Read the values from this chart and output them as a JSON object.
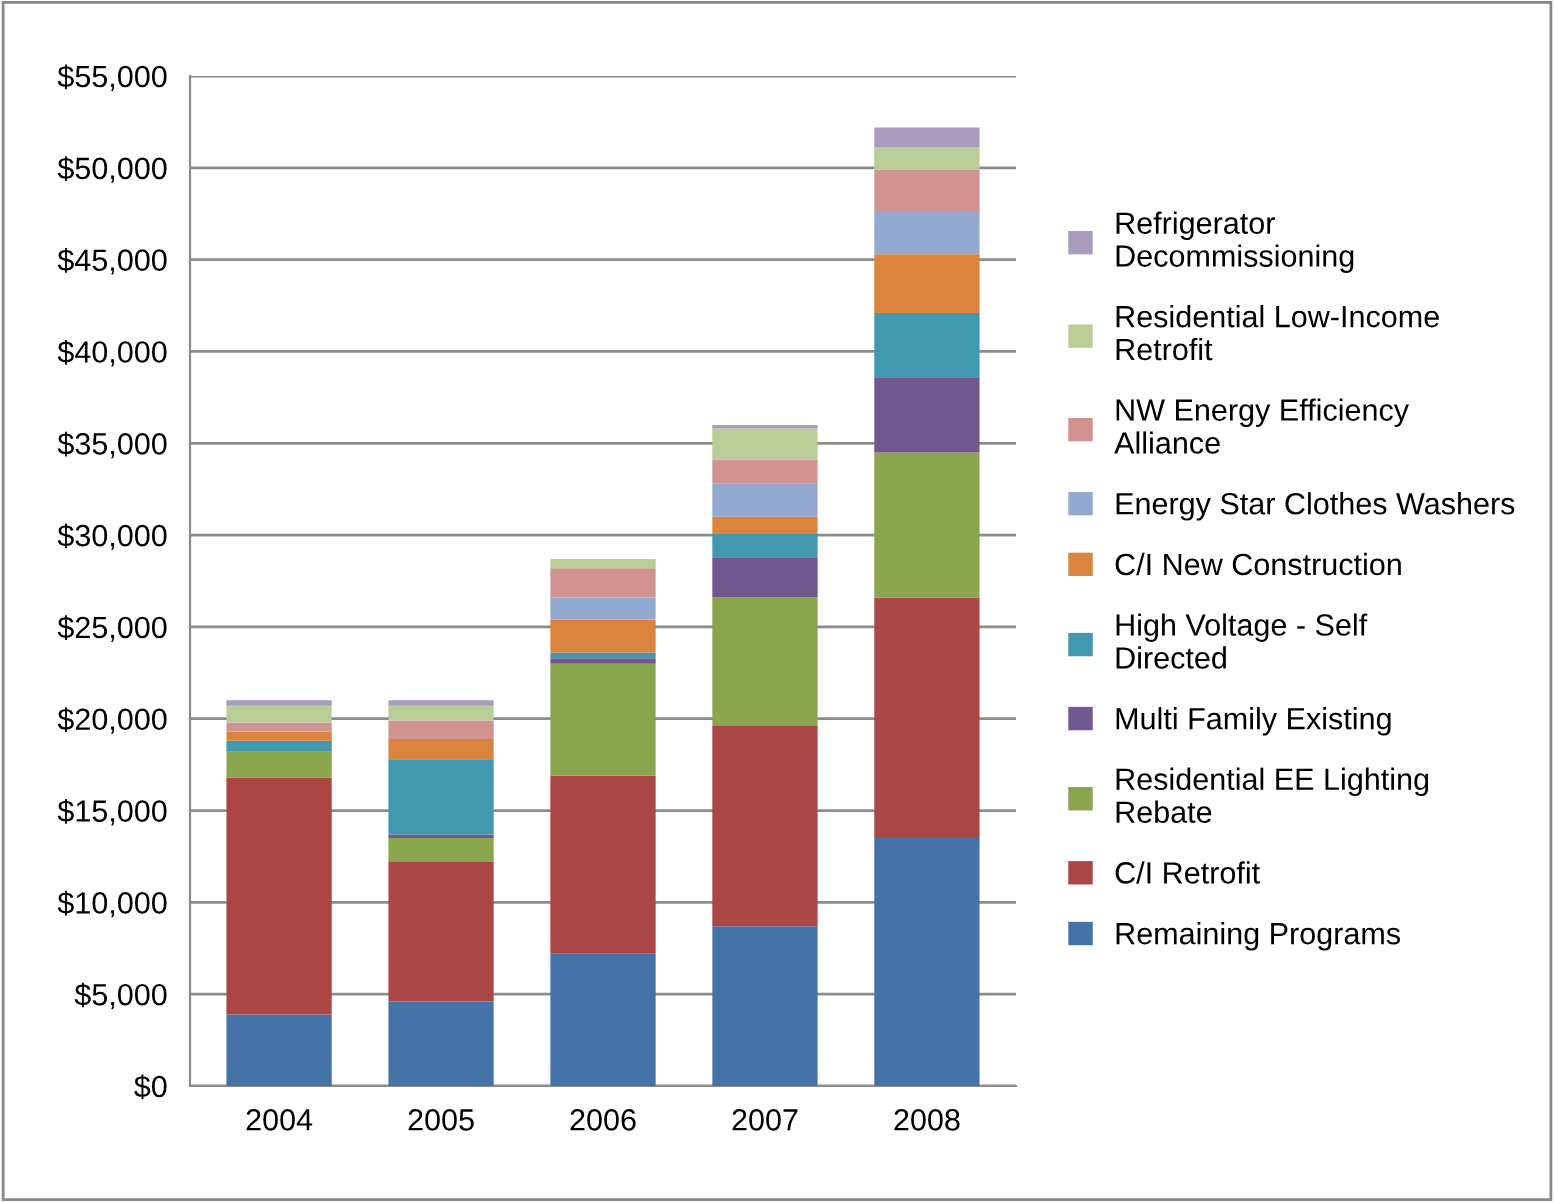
{
  "chart_data": {
    "type": "bar",
    "stacked": true,
    "categories": [
      "2004",
      "2005",
      "2006",
      "2007",
      "2008"
    ],
    "ylim": [
      0,
      55000
    ],
    "yticks": [
      {
        "value": 0,
        "label": "$0"
      },
      {
        "value": 5000,
        "label": "$5,000"
      },
      {
        "value": 10000,
        "label": "$10,000"
      },
      {
        "value": 15000,
        "label": "$15,000"
      },
      {
        "value": 20000,
        "label": "$20,000"
      },
      {
        "value": 25000,
        "label": "$25,000"
      },
      {
        "value": 30000,
        "label": "$30,000"
      },
      {
        "value": 35000,
        "label": "$35,000"
      },
      {
        "value": 40000,
        "label": "$40,000"
      },
      {
        "value": 45000,
        "label": "$45,000"
      },
      {
        "value": 50000,
        "label": "$50,000"
      },
      {
        "value": 55000,
        "label": "$55,000"
      }
    ],
    "grid": "y",
    "legend": "right",
    "series": [
      {
        "name": "Remaining Programs",
        "color": "#4572a7",
        "values": [
          3900,
          4600,
          7200,
          8700,
          13500
        ]
      },
      {
        "name": "C/I Retrofit",
        "color": "#aa4643",
        "values": [
          12900,
          7600,
          9700,
          10900,
          13100
        ]
      },
      {
        "name": "Residential EE Lighting Rebate",
        "color": "#89a54e",
        "values": [
          1400,
          1300,
          6100,
          7000,
          7900
        ]
      },
      {
        "name": "Multi Family Existing",
        "color": "#71588f",
        "values": [
          0,
          200,
          300,
          2200,
          4100
        ]
      },
      {
        "name": "High Voltage - Self Directed",
        "color": "#4198af",
        "values": [
          600,
          4100,
          300,
          1300,
          3500
        ]
      },
      {
        "name": "C/I New Construction",
        "color": "#db843d",
        "values": [
          500,
          1100,
          1800,
          900,
          3200
        ]
      },
      {
        "name": "Energy Star Clothes Washers",
        "color": "#93a9cf",
        "values": [
          0,
          0,
          1200,
          1800,
          2300
        ]
      },
      {
        "name": "NW Energy Efficiency Alliance",
        "color": "#d19392",
        "values": [
          500,
          1000,
          1600,
          1300,
          2300
        ]
      },
      {
        "name": "Residential Low-Income Retrofit",
        "color": "#b9cd96",
        "values": [
          900,
          800,
          500,
          1700,
          1200
        ]
      },
      {
        "name": "Refrigerator Decommissioning",
        "color": "#a99bbd",
        "values": [
          300,
          300,
          0,
          200,
          1100
        ]
      }
    ]
  }
}
